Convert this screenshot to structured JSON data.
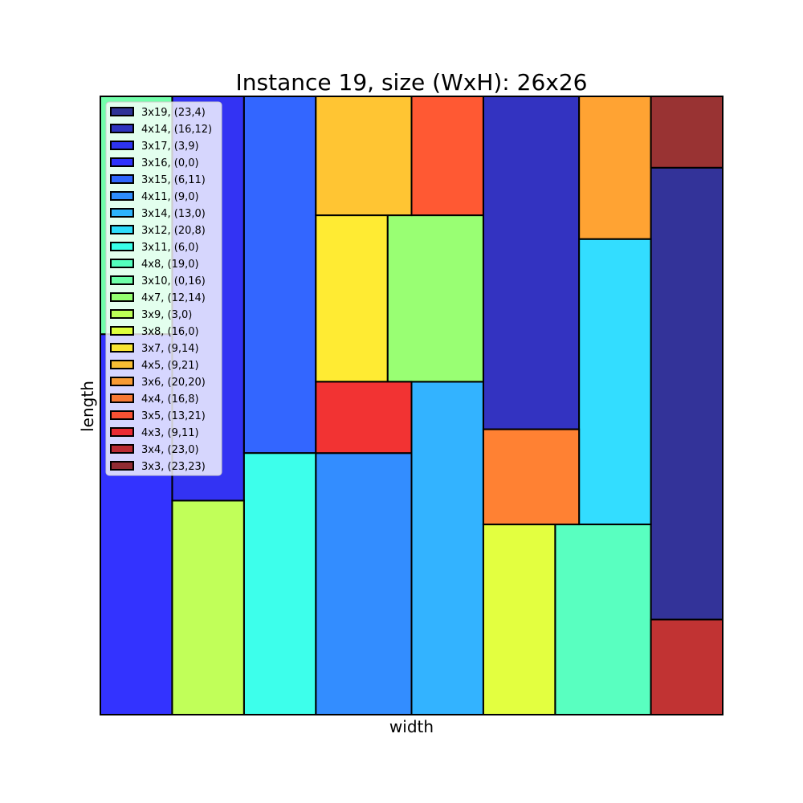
{
  "chart_data": {
    "type": "rectangle-packing",
    "title": "Instance 19, size (WxH): 26x26",
    "xlabel": "width",
    "ylabel": "length",
    "container": {
      "width": 26,
      "height": 26
    },
    "xlim": [
      0,
      26
    ],
    "ylim": [
      0,
      26
    ],
    "grid": false,
    "legend_placement": "top-left",
    "rectangles": [
      {
        "label": "3x19, (23,4)",
        "w": 3,
        "h": 19,
        "x": 23,
        "y": 4,
        "color": "#000080"
      },
      {
        "label": "4x14, (16,12)",
        "w": 4,
        "h": 14,
        "x": 16,
        "y": 12,
        "color": "#0000b2"
      },
      {
        "label": "3x17, (3,9)",
        "w": 3,
        "h": 17,
        "x": 3,
        "y": 9,
        "color": "#0000f0"
      },
      {
        "label": "3x16, (0,0)",
        "w": 3,
        "h": 16,
        "x": 0,
        "y": 0,
        "color": "#0000ff"
      },
      {
        "label": "3x15, (6,11)",
        "w": 3,
        "h": 15,
        "x": 6,
        "y": 11,
        "color": "#0040ff"
      },
      {
        "label": "4x11, (9,0)",
        "w": 4,
        "h": 11,
        "x": 9,
        "y": 0,
        "color": "#0070ff"
      },
      {
        "label": "3x14, (13,0)",
        "w": 3,
        "h": 14,
        "x": 13,
        "y": 0,
        "color": "#00a0ff"
      },
      {
        "label": "3x12, (20,8)",
        "w": 3,
        "h": 12,
        "x": 20,
        "y": 8,
        "color": "#00d4ff"
      },
      {
        "label": "3x11, (6,0)",
        "w": 3,
        "h": 11,
        "x": 6,
        "y": 0,
        "color": "#0dffe6"
      },
      {
        "label": "4x8, (19,0)",
        "w": 4,
        "h": 8,
        "x": 19,
        "y": 0,
        "color": "#30ffb0"
      },
      {
        "label": "3x10, (0,16)",
        "w": 3,
        "h": 10,
        "x": 0,
        "y": 16,
        "color": "#50ff96"
      },
      {
        "label": "4x7, (12,14)",
        "w": 4,
        "h": 7,
        "x": 12,
        "y": 14,
        "color": "#80ff50"
      },
      {
        "label": "3x9, (3,0)",
        "w": 3,
        "h": 9,
        "x": 3,
        "y": 0,
        "color": "#b2ff30"
      },
      {
        "label": "3x8, (16,0)",
        "w": 3,
        "h": 8,
        "x": 16,
        "y": 0,
        "color": "#dcff10"
      },
      {
        "label": "3x7, (9,14)",
        "w": 3,
        "h": 7,
        "x": 9,
        "y": 14,
        "color": "#ffe600"
      },
      {
        "label": "4x5, (9,21)",
        "w": 4,
        "h": 5,
        "x": 9,
        "y": 21,
        "color": "#ffb600"
      },
      {
        "label": "3x6, (20,20)",
        "w": 3,
        "h": 6,
        "x": 20,
        "y": 20,
        "color": "#ff8c00"
      },
      {
        "label": "4x4, (16,8)",
        "w": 4,
        "h": 4,
        "x": 16,
        "y": 8,
        "color": "#ff6200"
      },
      {
        "label": "3x5, (13,21)",
        "w": 3,
        "h": 5,
        "x": 13,
        "y": 21,
        "color": "#ff3000"
      },
      {
        "label": "4x3, (9,11)",
        "w": 4,
        "h": 3,
        "x": 9,
        "y": 11,
        "color": "#ef0000"
      },
      {
        "label": "3x4, (23,0)",
        "w": 3,
        "h": 4,
        "x": 23,
        "y": 0,
        "color": "#b20000"
      },
      {
        "label": "3x3, (23,23)",
        "w": 3,
        "h": 3,
        "x": 23,
        "y": 23,
        "color": "#800000"
      }
    ]
  }
}
